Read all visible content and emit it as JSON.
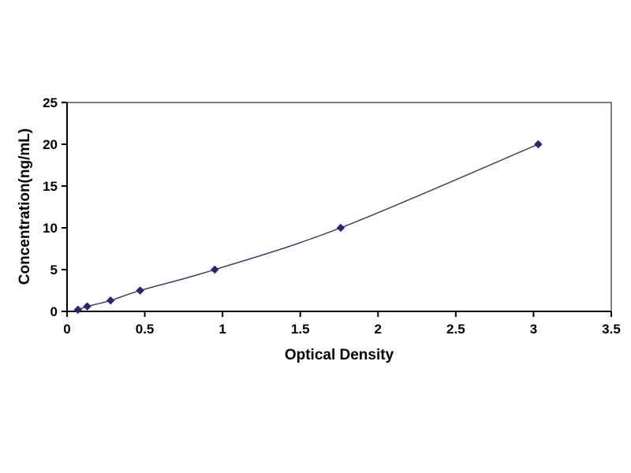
{
  "chart_data": {
    "type": "line",
    "title": "",
    "xlabel": "Optical Density",
    "ylabel": "Concentration(ng/mL)",
    "x": [
      0.07,
      0.13,
      0.28,
      0.47,
      0.95,
      1.76,
      3.03
    ],
    "y": [
      0.2,
      0.6,
      1.3,
      2.5,
      5,
      10,
      20
    ],
    "xlim": [
      0,
      3.5
    ],
    "ylim": [
      0,
      25
    ],
    "x_ticks": [
      0,
      0.5,
      1,
      1.5,
      2,
      2.5,
      3,
      3.5
    ],
    "y_ticks": [
      0,
      5,
      10,
      15,
      20,
      25
    ],
    "grid": false,
    "legend": "none",
    "marker": "diamond",
    "colors": {
      "line": "#31315e",
      "marker": "#26266e",
      "axis": "#000000",
      "plot_border": "#000000",
      "background": "#ffffff"
    }
  }
}
